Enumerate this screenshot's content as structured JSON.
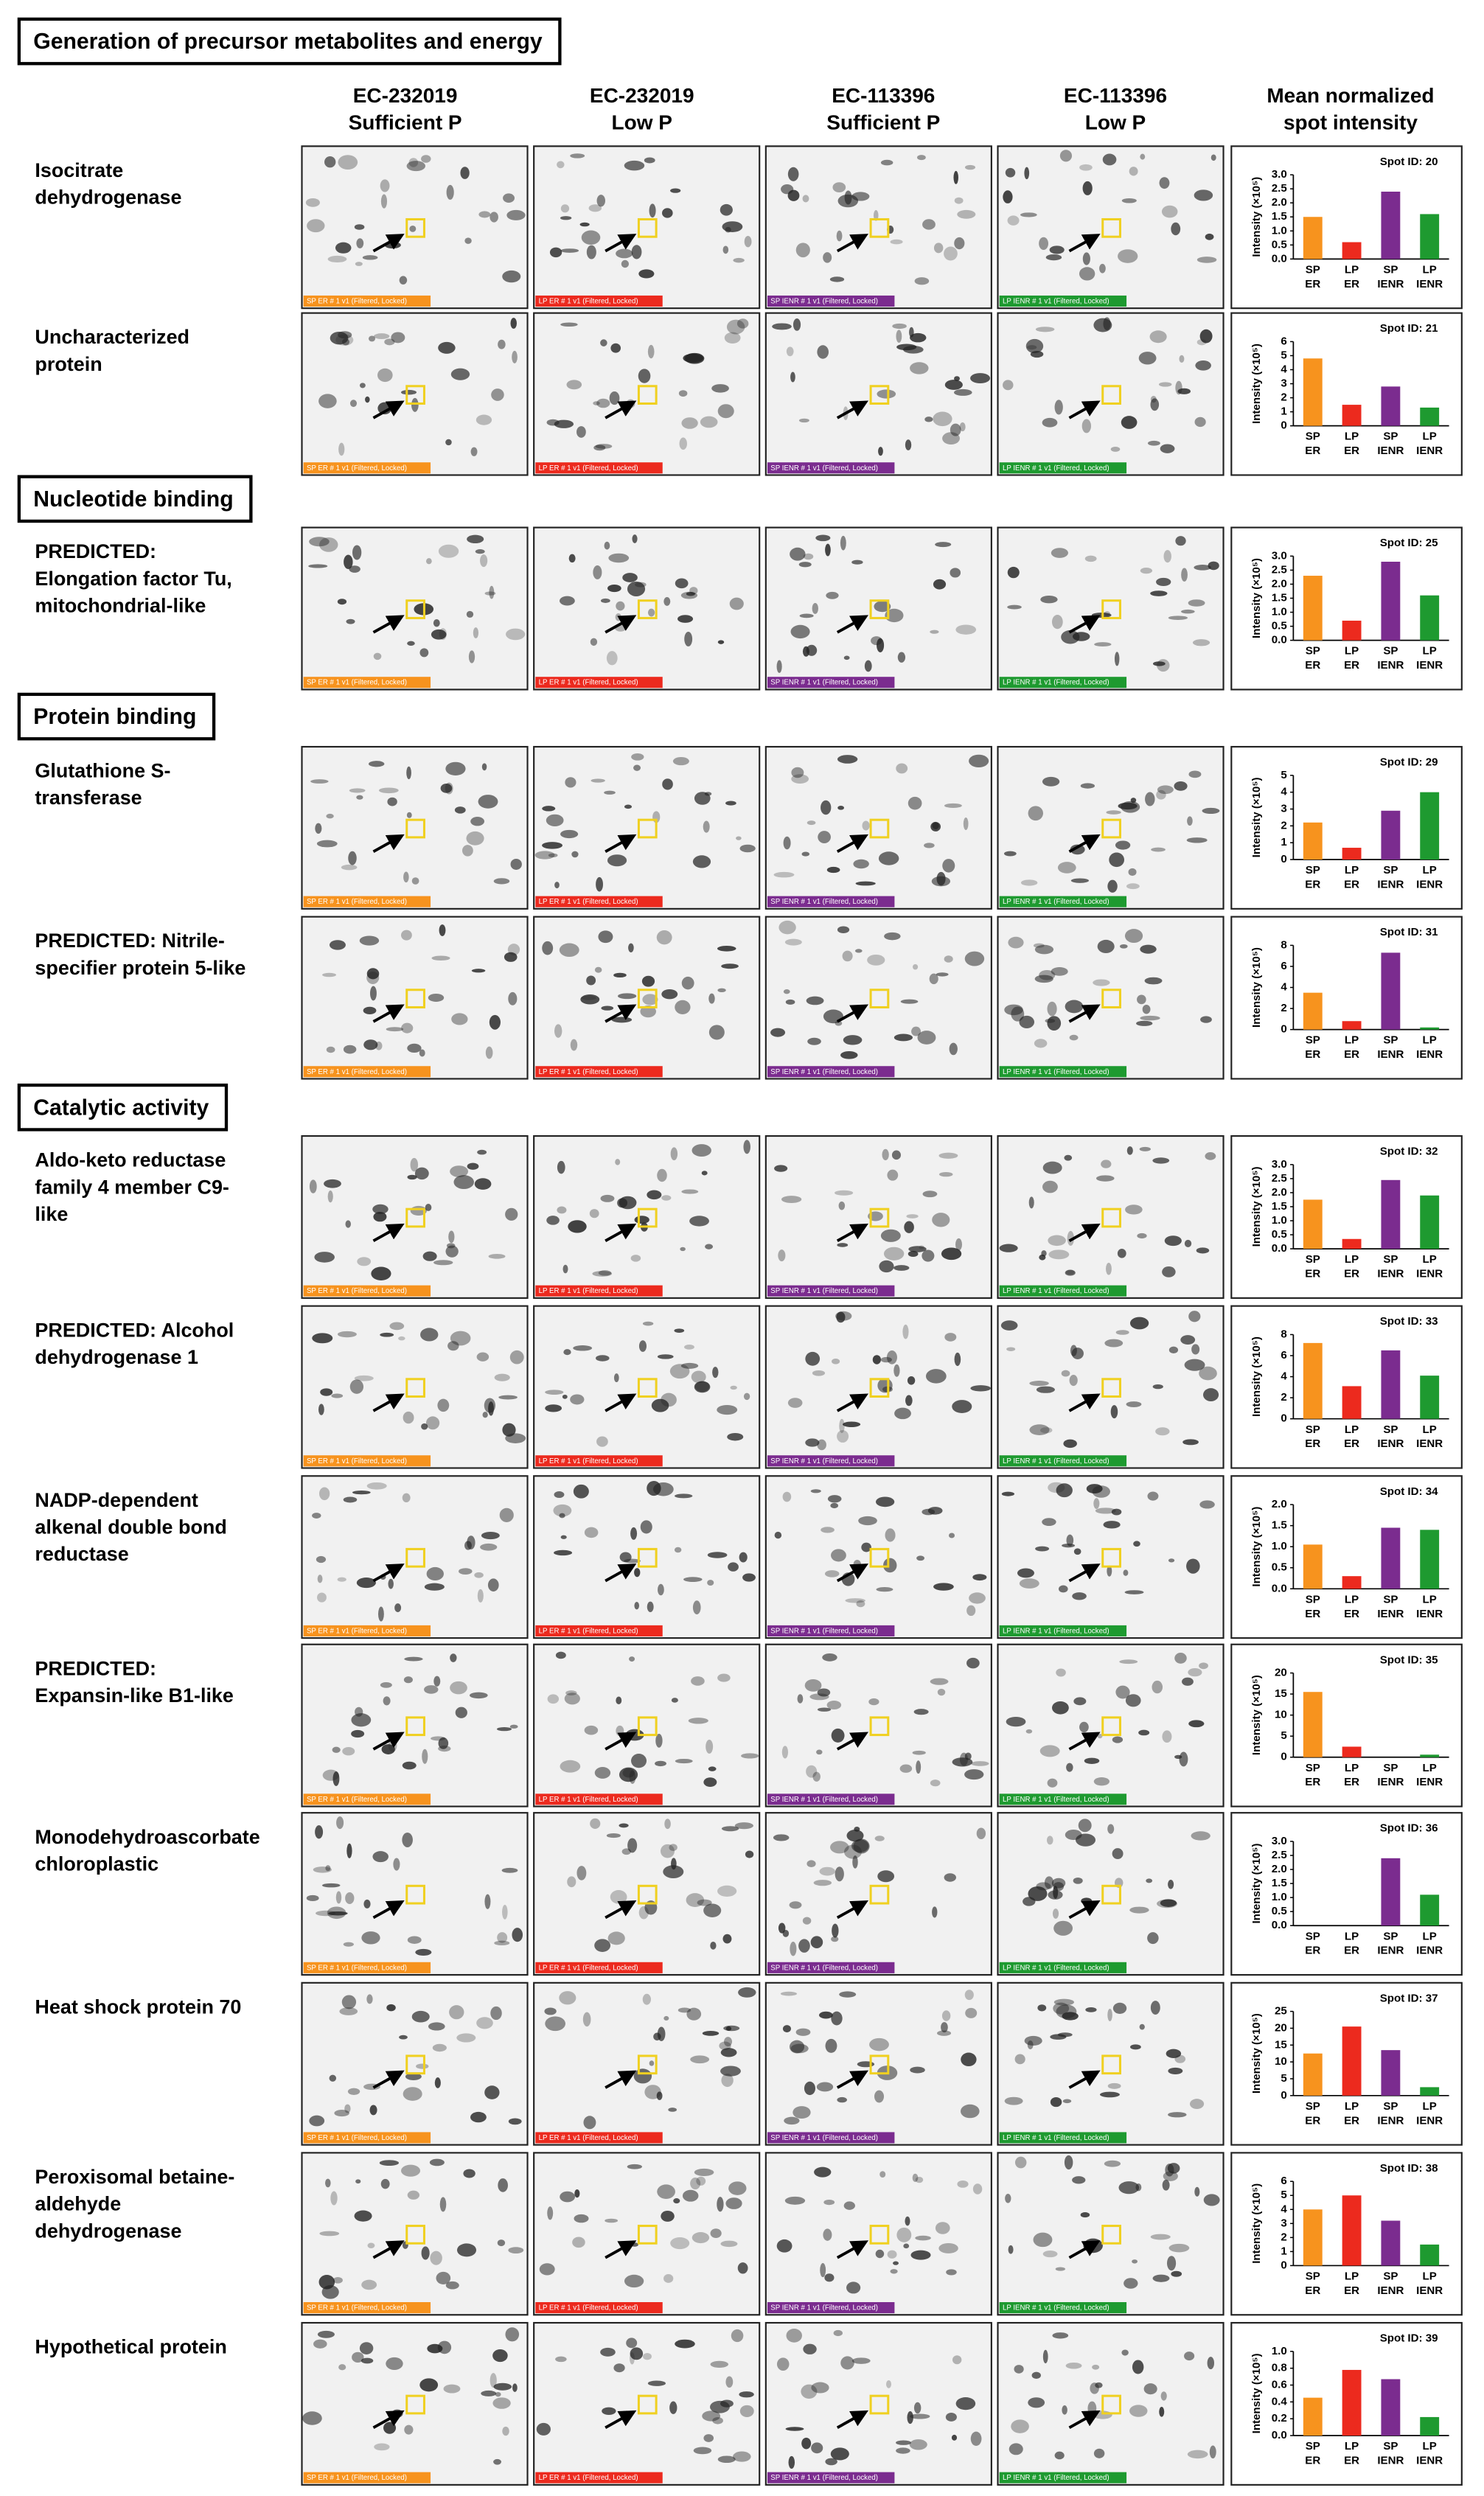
{
  "columns": [
    [
      "EC-232019",
      "Sufficient P"
    ],
    [
      "EC-232019",
      "Low P"
    ],
    [
      "EC-113396",
      "Sufficient P"
    ],
    [
      "EC-113396",
      "Low P"
    ],
    [
      "Mean normalized",
      "spot intensity"
    ]
  ],
  "gel_captions": [
    "SP ER # 1 v1 (Filtered, Locked)",
    "LP ER # 1 v1 (Filtered, Locked)",
    "SP IENR # 1 v1 (Filtered, Locked)",
    "LP IENR # 1 v1 (Filtered, Locked)"
  ],
  "bar_colors": [
    "#f7931e",
    "#ec2a1e",
    "#7b2c8f",
    "#1e9a30"
  ],
  "categories": [
    [
      "SP",
      "ER"
    ],
    [
      "LP",
      "ER"
    ],
    [
      "SP",
      "IENR"
    ],
    [
      "LP",
      "IENR"
    ]
  ],
  "y_axis_label": "Intensity (×10⁵)",
  "sections": [
    {
      "title": "Generation of precursor metabolites and energy",
      "rows": [
        {
          "label": [
            "Isocitrate",
            "dehydrogenase"
          ],
          "spot_id": "Spot ID: 20",
          "ylim": [
            0,
            3
          ],
          "yticks": [
            {
              "value": 0,
              "label": "0.0"
            },
            {
              "value": 0.5,
              "label": "0.5"
            },
            {
              "value": 1,
              "label": "1.0"
            },
            {
              "value": 1.5,
              "label": "1.5"
            },
            {
              "value": 2,
              "label": "2.0"
            },
            {
              "value": 2.5,
              "label": "2.5"
            },
            {
              "value": 3,
              "label": "3.0"
            }
          ],
          "values": [
            1.5,
            0.6,
            2.4,
            1.6
          ]
        },
        {
          "label": [
            "Uncharacterized",
            "protein"
          ],
          "spot_id": "Spot ID: 21",
          "ylim": [
            0,
            6
          ],
          "yticks": [
            0,
            1,
            2,
            3,
            4,
            5,
            6
          ],
          "values": [
            4.8,
            1.5,
            2.8,
            1.3
          ]
        }
      ]
    },
    {
      "title": "Nucleotide binding",
      "rows": [
        {
          "label": [
            "PREDICTED:",
            "Elongation factor Tu,",
            "mitochondrial-like"
          ],
          "spot_id": "Spot ID: 25",
          "ylim": [
            0,
            3
          ],
          "yticks": [
            {
              "value": 0,
              "label": "0.0"
            },
            {
              "value": 0.5,
              "label": "0.5"
            },
            {
              "value": 1,
              "label": "1.0"
            },
            {
              "value": 1.5,
              "label": "1.5"
            },
            {
              "value": 2,
              "label": "2.0"
            },
            {
              "value": 2.5,
              "label": "2.5"
            },
            {
              "value": 3,
              "label": "3.0"
            }
          ],
          "values": [
            2.3,
            0.7,
            2.8,
            1.6
          ]
        }
      ]
    },
    {
      "title": "Protein binding",
      "rows": [
        {
          "label": [
            "Glutathione S-",
            "transferase"
          ],
          "spot_id": "Spot ID: 29",
          "ylim": [
            0,
            5
          ],
          "yticks": [
            0,
            1,
            2,
            3,
            4,
            5
          ],
          "values": [
            2.2,
            0.7,
            2.9,
            4.0
          ]
        },
        {
          "label": [
            "PREDICTED: Nitrile-",
            "specifier protein 5-like"
          ],
          "spot_id": "Spot ID: 31",
          "ylim": [
            0,
            8
          ],
          "yticks": [
            0,
            2,
            4,
            6,
            8
          ],
          "values": [
            3.5,
            0.8,
            7.3,
            0.2
          ]
        }
      ]
    },
    {
      "title": "Catalytic activity",
      "rows": [
        {
          "label": [
            "Aldo-keto reductase",
            "family 4 member C9-",
            "like"
          ],
          "spot_id": "Spot ID: 32",
          "ylim": [
            0,
            3
          ],
          "yticks": [
            {
              "value": 0,
              "label": "0.0"
            },
            {
              "value": 0.5,
              "label": "0.5"
            },
            {
              "value": 1,
              "label": "1.0"
            },
            {
              "value": 1.5,
              "label": "1.5"
            },
            {
              "value": 2,
              "label": "2.0"
            },
            {
              "value": 2.5,
              "label": "2.5"
            },
            {
              "value": 3,
              "label": "3.0"
            }
          ],
          "values": [
            1.75,
            0.35,
            2.45,
            1.9
          ]
        },
        {
          "label": [
            "PREDICTED: Alcohol",
            "dehydrogenase 1"
          ],
          "spot_id": "Spot ID: 33",
          "ylim": [
            0,
            8
          ],
          "yticks": [
            0,
            2,
            4,
            6,
            8
          ],
          "values": [
            7.2,
            3.1,
            6.5,
            4.1
          ]
        },
        {
          "label": [
            "NADP-dependent",
            "alkenal double bond",
            "reductase"
          ],
          "spot_id": "Spot ID: 34",
          "ylim": [
            0,
            2
          ],
          "yticks": [
            {
              "value": 0,
              "label": "0.0"
            },
            {
              "value": 0.5,
              "label": "0.5"
            },
            {
              "value": 1,
              "label": "1.0"
            },
            {
              "value": 1.5,
              "label": "1.5"
            },
            {
              "value": 2,
              "label": "2.0"
            }
          ],
          "values": [
            1.05,
            0.3,
            1.45,
            1.4
          ]
        },
        {
          "label": [
            "PREDICTED:",
            "Expansin-like B1-like"
          ],
          "spot_id": "Spot ID: 35",
          "ylim": [
            0,
            20
          ],
          "yticks": [
            0,
            5,
            10,
            15,
            20
          ],
          "values": [
            15.5,
            2.5,
            0,
            0.6
          ]
        },
        {
          "label": [
            "Monodehydroascorbate",
            "chloroplastic"
          ],
          "spot_id": "Spot ID: 36",
          "ylim": [
            0,
            3
          ],
          "yticks": [
            {
              "value": 0,
              "label": "0.0"
            },
            {
              "value": 0.5,
              "label": "0.5"
            },
            {
              "value": 1,
              "label": "1.0"
            },
            {
              "value": 1.5,
              "label": "1.5"
            },
            {
              "value": 2,
              "label": "2.0"
            },
            {
              "value": 2.5,
              "label": "2.5"
            },
            {
              "value": 3,
              "label": "3.0"
            }
          ],
          "values": [
            0,
            0,
            2.4,
            1.1
          ]
        },
        {
          "label": [
            "Heat shock protein 70"
          ],
          "spot_id": "Spot ID: 37",
          "ylim": [
            0,
            25
          ],
          "yticks": [
            0,
            5,
            10,
            15,
            20,
            25
          ],
          "values": [
            12.5,
            20.5,
            13.5,
            2.5
          ]
        },
        {
          "label": [
            "Peroxisomal betaine-",
            "aldehyde",
            "dehydrogenase"
          ],
          "spot_id": "Spot ID: 38",
          "ylim": [
            0,
            6
          ],
          "yticks": [
            0,
            1,
            2,
            3,
            4,
            5,
            6
          ],
          "values": [
            4.0,
            5.0,
            3.2,
            1.5
          ]
        },
        {
          "label": [
            "Hypothetical protein"
          ],
          "spot_id": "Spot ID: 39",
          "ylim": [
            0,
            1
          ],
          "yticks": [
            {
              "value": 0,
              "label": "0.0"
            },
            {
              "value": 0.2,
              "label": "0.2"
            },
            {
              "value": 0.4,
              "label": "0.4"
            },
            {
              "value": 0.6,
              "label": "0.6"
            },
            {
              "value": 0.8,
              "label": "0.8"
            },
            {
              "value": 1,
              "label": "1.0"
            }
          ],
          "values": [
            0.45,
            0.78,
            0.67,
            0.22
          ]
        }
      ]
    }
  ]
}
